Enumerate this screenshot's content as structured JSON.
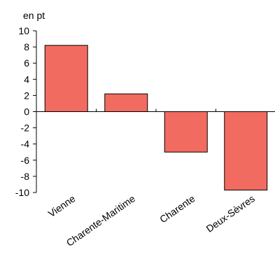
{
  "chart_data": {
    "type": "bar",
    "ylabel": "en pt",
    "categories": [
      "Vienne",
      "Charente-Maritime",
      "Charente",
      "Deux-Sèvres"
    ],
    "values": [
      8.2,
      2.2,
      -5.0,
      -9.7
    ],
    "ylim": [
      -10,
      10
    ],
    "yticks": [
      "-10",
      "-8",
      "-6",
      "-4",
      "-2",
      "0",
      "2",
      "4",
      "6",
      "8",
      "10"
    ],
    "grid": false,
    "legend": "none",
    "bar_color": "#f26b60",
    "bar_edge_color": "#000000"
  }
}
